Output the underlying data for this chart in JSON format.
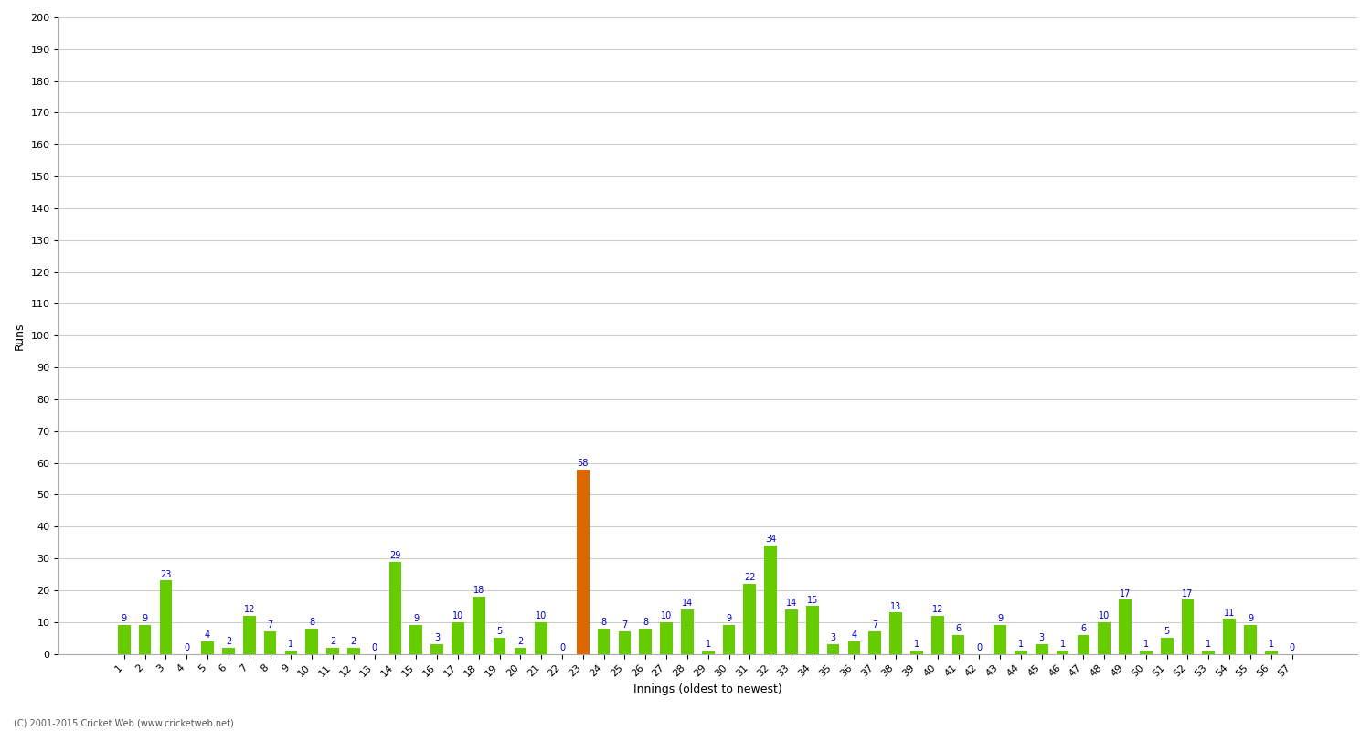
{
  "xlabel": "Innings (oldest to newest)",
  "ylabel": "Runs",
  "background_color": "#ffffff",
  "grid_color": "#cccccc",
  "bar_color_green": "#66cc00",
  "bar_color_orange": "#dd6600",
  "label_color": "#0000cc",
  "innings": [
    1,
    2,
    3,
    4,
    5,
    6,
    7,
    8,
    9,
    10,
    11,
    12,
    13,
    14,
    15,
    16,
    17,
    18,
    19,
    20,
    21,
    22,
    23,
    24,
    25,
    26,
    27,
    28,
    29,
    30,
    31,
    32,
    33,
    34,
    35,
    36,
    37,
    38,
    39,
    40,
    41,
    42,
    43,
    44,
    45,
    46,
    47,
    48,
    49,
    50,
    51,
    52,
    53,
    54,
    55,
    56,
    57
  ],
  "values": [
    9,
    9,
    23,
    0,
    4,
    2,
    12,
    7,
    1,
    8,
    2,
    2,
    0,
    29,
    9,
    3,
    10,
    18,
    5,
    2,
    10,
    0,
    58,
    8,
    7,
    8,
    10,
    14,
    1,
    9,
    22,
    34,
    14,
    15,
    3,
    4,
    7,
    13,
    1,
    12,
    6,
    0,
    9,
    1,
    3,
    1,
    6,
    10,
    17,
    1,
    5,
    17,
    1,
    11,
    9,
    1,
    0
  ],
  "highlight_innings": [
    23
  ],
  "ylim": [
    0,
    200
  ],
  "yticks": [
    0,
    10,
    20,
    30,
    40,
    50,
    60,
    70,
    80,
    90,
    100,
    110,
    120,
    130,
    140,
    150,
    160,
    170,
    180,
    190,
    200
  ],
  "footer_text": "(C) 2001-2015 Cricket Web (www.cricketweb.net)",
  "axis_label_fontsize": 9,
  "tick_fontsize": 8,
  "value_label_fontsize": 7
}
